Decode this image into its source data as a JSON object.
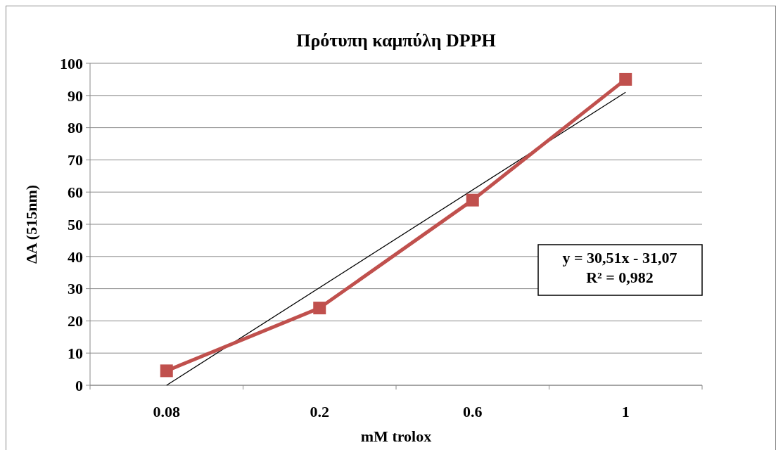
{
  "chart_data": {
    "type": "line",
    "title": "Πρότυπη καμπύλη DPPH",
    "xlabel": "mM trolox",
    "ylabel": "ΔA (515nm)",
    "categories": [
      "0.08",
      "0.2",
      "0.6",
      "1"
    ],
    "series": [
      {
        "color": "#c0504d",
        "values": [
          4.5,
          24,
          57.5,
          95
        ],
        "marker": "square"
      },
      {
        "color": "#000000",
        "x": [
          "0.08",
          "1"
        ],
        "values": [
          0,
          91
        ],
        "marker": "none"
      }
    ],
    "ylim": [
      0,
      100
    ],
    "yticks": [
      0,
      10,
      20,
      30,
      40,
      50,
      60,
      70,
      80,
      90,
      100
    ],
    "grid": "y",
    "annotations": [
      "y = 30,51x - 31,07",
      "R² = 0,982"
    ]
  }
}
